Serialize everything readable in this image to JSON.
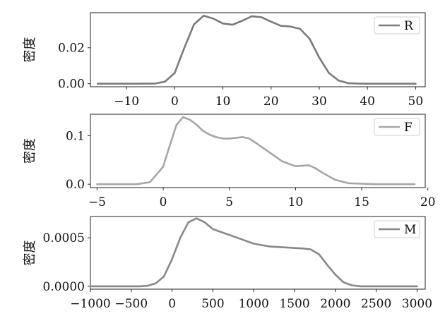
{
  "chart_data": [
    {
      "type": "line",
      "ylabel": "密度",
      "xlim": [
        -17.5,
        52
      ],
      "ylim": [
        -0.0017,
        0.0395
      ],
      "xticks": [
        -10,
        0,
        10,
        20,
        30,
        40,
        50
      ],
      "yticks": [
        0.0,
        0.02
      ],
      "ytick_labels": [
        "0.00",
        "0.02"
      ],
      "legend_position": "upper right",
      "series": [
        {
          "name": "R",
          "color": "#7a7a7a",
          "x": [
            -16,
            -8,
            -4,
            -2,
            0,
            2,
            4,
            6,
            8,
            10,
            12,
            14,
            16,
            18,
            20,
            22,
            24,
            26,
            28,
            30,
            32,
            34,
            36,
            38,
            40,
            50
          ],
          "y": [
            0.0,
            0.0,
            0.0001,
            0.0012,
            0.006,
            0.02,
            0.033,
            0.0378,
            0.0362,
            0.0335,
            0.0328,
            0.035,
            0.0375,
            0.037,
            0.0345,
            0.0322,
            0.0318,
            0.0305,
            0.025,
            0.0145,
            0.006,
            0.0018,
            0.0003,
            5e-05,
            0.0,
            0.0
          ]
        }
      ]
    },
    {
      "type": "line",
      "ylabel": "密度",
      "xlim": [
        -5.5,
        19.8
      ],
      "ylim": [
        -0.007,
        0.144
      ],
      "xticks": [
        -5,
        0,
        5,
        10,
        15,
        20
      ],
      "yticks": [
        0.0,
        0.1
      ],
      "ytick_labels": [
        "0.0",
        "0.1"
      ],
      "legend_position": "upper right",
      "series": [
        {
          "name": "F",
          "color": "#a6a6a6",
          "x": [
            -5,
            -2,
            -1,
            0,
            0.5,
            1,
            1.5,
            2,
            2.5,
            3,
            3.5,
            4,
            4.5,
            5,
            6,
            6.5,
            7,
            8,
            9,
            10,
            11,
            11.5,
            12,
            13,
            14,
            16,
            19
          ],
          "y": [
            0.0,
            0.0,
            0.004,
            0.036,
            0.08,
            0.122,
            0.138,
            0.133,
            0.123,
            0.11,
            0.102,
            0.097,
            0.094,
            0.094,
            0.097,
            0.094,
            0.085,
            0.066,
            0.047,
            0.037,
            0.039,
            0.033,
            0.024,
            0.009,
            0.002,
            0.0,
            0.0
          ]
        }
      ]
    },
    {
      "type": "line",
      "ylabel": "密度",
      "xlabel": "",
      "xlim": [
        -1000,
        3100
      ],
      "ylim": [
        -3e-05,
        0.00072
      ],
      "xticks": [
        -1000,
        -500,
        0,
        500,
        1000,
        1500,
        2000,
        2500,
        3000
      ],
      "yticks": [
        0.0,
        0.0005
      ],
      "ytick_labels": [
        "0.0000",
        "0.0005"
      ],
      "legend_position": "upper right",
      "series": [
        {
          "name": "M",
          "color": "#888888",
          "x": [
            -1000,
            -400,
            -300,
            -200,
            -100,
            0,
            100,
            200,
            300,
            400,
            500,
            600,
            800,
            1000,
            1200,
            1400,
            1600,
            1700,
            1800,
            1900,
            2000,
            2100,
            2200,
            2300,
            2500,
            3000
          ],
          "y": [
            0.0,
            0.0,
            5e-06,
            3e-05,
            0.0001,
            0.00028,
            0.0005,
            0.00066,
            0.0007,
            0.00066,
            0.00059,
            0.00056,
            0.0005,
            0.00044,
            0.00041,
            0.0004,
            0.00039,
            0.00038,
            0.00033,
            0.00022,
            0.00012,
            4e-05,
            1e-05,
            0.0,
            0.0,
            0.0
          ]
        }
      ]
    }
  ]
}
